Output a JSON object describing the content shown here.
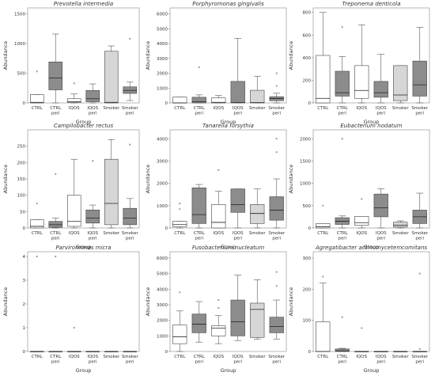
{
  "chart_data": [
    {
      "type": "box",
      "title": "Prevotella intermedia",
      "xlabel": "Group",
      "ylabel": "Abundance",
      "ylim": [
        0,
        1600
      ],
      "yticks": [
        0,
        500,
        1000,
        1500
      ],
      "categories": [
        "CTRL",
        "CTRL peri",
        "IQOS",
        "IQOS peri",
        "Smoker",
        "Smoker peri"
      ],
      "fills": [
        "#ffffff",
        "#8c8c8c",
        "#ffffff",
        "#8c8c8c",
        "#d6d6d6",
        "#8c8c8c"
      ],
      "boxes": [
        {
          "wl": 0,
          "q1": 0,
          "med": 10,
          "q3": 140,
          "wh": 140,
          "out": [
            530
          ]
        },
        {
          "wl": 0,
          "q1": 220,
          "med": 420,
          "q3": 690,
          "wh": 1160,
          "out": []
        },
        {
          "wl": 0,
          "q1": 5,
          "med": 20,
          "q3": 70,
          "wh": 150,
          "out": [
            330
          ]
        },
        {
          "wl": 0,
          "q1": 20,
          "med": 70,
          "q3": 210,
          "wh": 320,
          "out": []
        },
        {
          "wl": 0,
          "q1": 0,
          "med": 10,
          "q3": 870,
          "wh": 960,
          "out": []
        },
        {
          "wl": 40,
          "q1": 160,
          "med": 210,
          "q3": 270,
          "wh": 350,
          "out": [
            1080
          ]
        }
      ]
    },
    {
      "type": "box",
      "title": "Porphyromonas gingivalis",
      "xlabel": "Group",
      "ylabel": "Abundance",
      "ylim": [
        0,
        6400
      ],
      "yticks": [
        0,
        1000,
        2000,
        3000,
        4000,
        5000,
        6000
      ],
      "categories": [
        "CTRL",
        "CTRL peri",
        "IQOS",
        "IQOS peri",
        "Smoker",
        "Smoker peri"
      ],
      "fills": [
        "#ffffff",
        "#8c8c8c",
        "#ffffff",
        "#8c8c8c",
        "#d6d6d6",
        "#8c8c8c"
      ],
      "boxes": [
        {
          "wl": 0,
          "q1": 0,
          "med": 0,
          "q3": 390,
          "wh": 390,
          "out": []
        },
        {
          "wl": 0,
          "q1": 0,
          "med": 80,
          "q3": 380,
          "wh": 540,
          "out": [
            2400
          ]
        },
        {
          "wl": 0,
          "q1": 0,
          "med": 40,
          "q3": 340,
          "wh": 500,
          "out": []
        },
        {
          "wl": 0,
          "q1": 0,
          "med": 20,
          "q3": 1450,
          "wh": 4350,
          "out": []
        },
        {
          "wl": 0,
          "q1": 0,
          "med": 20,
          "q3": 850,
          "wh": 1800,
          "out": []
        },
        {
          "wl": 0,
          "q1": 150,
          "med": 290,
          "q3": 420,
          "wh": 650,
          "out": [
            1150,
            2000
          ]
        }
      ]
    },
    {
      "type": "box",
      "title": "Treponema denticola",
      "xlabel": "Group",
      "ylabel": "Abundance",
      "ylim": [
        0,
        840
      ],
      "yticks": [
        0,
        200,
        400,
        600,
        800
      ],
      "categories": [
        "CTRL",
        "CTRL peri",
        "IQOS",
        "IQOS peri",
        "Smoker",
        "Smoker peri"
      ],
      "fills": [
        "#ffffff",
        "#8c8c8c",
        "#ffffff",
        "#8c8c8c",
        "#d6d6d6",
        "#8c8c8c"
      ],
      "boxes": [
        {
          "wl": 0,
          "q1": 0,
          "med": 40,
          "q3": 420,
          "wh": 800,
          "out": []
        },
        {
          "wl": 0,
          "q1": 60,
          "med": 90,
          "q3": 280,
          "wh": 410,
          "out": [
            670
          ]
        },
        {
          "wl": 0,
          "q1": 40,
          "med": 110,
          "q3": 330,
          "wh": 690,
          "out": []
        },
        {
          "wl": 0,
          "q1": 50,
          "med": 90,
          "q3": 190,
          "wh": 430,
          "out": []
        },
        {
          "wl": 0,
          "q1": 20,
          "med": 70,
          "q3": 330,
          "wh": 330,
          "out": []
        },
        {
          "wl": 0,
          "q1": 60,
          "med": 160,
          "q3": 370,
          "wh": 670,
          "out": []
        }
      ]
    },
    {
      "type": "box",
      "title": "Campilobacter rectus",
      "xlabel": "Group",
      "ylabel": "Abundance",
      "ylim": [
        0,
        300
      ],
      "yticks": [
        0,
        50,
        100,
        150,
        200,
        250
      ],
      "categories": [
        "CTRL",
        "CTRL peri",
        "IQOS",
        "IQOS peri",
        "Smoker",
        "Smoker peri"
      ],
      "fills": [
        "#ffffff",
        "#8c8c8c",
        "#ffffff",
        "#8c8c8c",
        "#d6d6d6",
        "#8c8c8c"
      ],
      "boxes": [
        {
          "wl": 0,
          "q1": 0,
          "med": 5,
          "q3": 25,
          "wh": 25,
          "out": [
            75
          ]
        },
        {
          "wl": 0,
          "q1": 2,
          "med": 10,
          "q3": 20,
          "wh": 30,
          "out": [
            165
          ]
        },
        {
          "wl": 0,
          "q1": 5,
          "med": 20,
          "q3": 100,
          "wh": 210,
          "out": []
        },
        {
          "wl": 0,
          "q1": 15,
          "med": 30,
          "q3": 55,
          "wh": 70,
          "out": [
            205
          ]
        },
        {
          "wl": 0,
          "q1": 10,
          "med": 75,
          "q3": 210,
          "wh": 270,
          "out": []
        },
        {
          "wl": 0,
          "q1": 10,
          "med": 30,
          "q3": 60,
          "wh": 90,
          "out": [
            255
          ]
        }
      ]
    },
    {
      "type": "box",
      "title": "Tanarella forsythia",
      "xlabel": "Group",
      "ylabel": "Abundance",
      "ylim": [
        0,
        4400
      ],
      "yticks": [
        0,
        1000,
        2000,
        3000,
        4000
      ],
      "categories": [
        "CTRL",
        "CTRL peri",
        "IQOS",
        "IQOS peri",
        "Smoker",
        "Smoker peri"
      ],
      "fills": [
        "#ffffff",
        "#8c8c8c",
        "#ffffff",
        "#8c8c8c",
        "#d6d6d6",
        "#8c8c8c"
      ],
      "boxes": [
        {
          "wl": 0,
          "q1": 50,
          "med": 150,
          "q3": 300,
          "wh": 300,
          "out": [
            850,
            1100
          ]
        },
        {
          "wl": 0,
          "q1": 200,
          "med": 600,
          "q3": 1800,
          "wh": 1950,
          "out": []
        },
        {
          "wl": 0,
          "q1": 0,
          "med": 250,
          "q3": 1050,
          "wh": 1650,
          "out": [
            2600
          ]
        },
        {
          "wl": 0,
          "q1": 700,
          "med": 1050,
          "q3": 1750,
          "wh": 1750,
          "out": []
        },
        {
          "wl": 0,
          "q1": 200,
          "med": 650,
          "q3": 1050,
          "wh": 1750,
          "out": []
        },
        {
          "wl": 0,
          "q1": 350,
          "med": 800,
          "q3": 1400,
          "wh": 2200,
          "out": [
            3400,
            4000
          ]
        }
      ]
    },
    {
      "type": "box",
      "title": "Eubacterium nodatum",
      "xlabel": "Group",
      "ylabel": "Abundance",
      "ylim": [
        0,
        2200
      ],
      "yticks": [
        0,
        500,
        1000,
        1500,
        2000
      ],
      "categories": [
        "CTRL",
        "CTRL peri",
        "IQOS",
        "IQOS peri",
        "Smoker",
        "Smoker peri"
      ],
      "fills": [
        "#ffffff",
        "#8c8c8c",
        "#ffffff",
        "#8c8c8c",
        "#d6d6d6",
        "#8c8c8c"
      ],
      "boxes": [
        {
          "wl": 0,
          "q1": 0,
          "med": 30,
          "q3": 100,
          "wh": 100,
          "out": [
            500
          ]
        },
        {
          "wl": 0,
          "q1": 80,
          "med": 150,
          "q3": 230,
          "wh": 270,
          "out": [
            2000
          ]
        },
        {
          "wl": 0,
          "q1": 60,
          "med": 120,
          "q3": 260,
          "wh": 260,
          "out": [
            650
          ]
        },
        {
          "wl": 0,
          "q1": 250,
          "med": 450,
          "q3": 760,
          "wh": 880,
          "out": []
        },
        {
          "wl": 0,
          "q1": 20,
          "med": 60,
          "q3": 130,
          "wh": 160,
          "out": []
        },
        {
          "wl": 0,
          "q1": 100,
          "med": 250,
          "q3": 400,
          "wh": 780,
          "out": []
        }
      ]
    },
    {
      "type": "box",
      "title": "Parviromonas micra",
      "xlabel": "Group",
      "ylabel": "Abundance",
      "ylim": [
        0,
        4.2
      ],
      "yticks": [
        0,
        1,
        2,
        3,
        4
      ],
      "categories": [
        "CTRL",
        "CTRL peri",
        "IQOS",
        "IQOS peri",
        "Smoker",
        "Smoker peri"
      ],
      "fills": [
        "#ffffff",
        "#8c8c8c",
        "#ffffff",
        "#8c8c8c",
        "#d6d6d6",
        "#8c8c8c"
      ],
      "boxes": [
        {
          "wl": 0,
          "q1": 0,
          "med": 0,
          "q3": 0,
          "wh": 0,
          "out": [
            4
          ]
        },
        {
          "wl": 0,
          "q1": 0,
          "med": 0,
          "q3": 0,
          "wh": 0,
          "out": [
            4
          ]
        },
        {
          "wl": 0,
          "q1": 0,
          "med": 0,
          "q3": 0,
          "wh": 0,
          "out": [
            1
          ]
        },
        {
          "wl": 0,
          "q1": 0,
          "med": 0,
          "q3": 0,
          "wh": 0,
          "out": []
        },
        {
          "wl": 0,
          "q1": 0,
          "med": 0,
          "q3": 0,
          "wh": 0,
          "out": []
        },
        {
          "wl": 0,
          "q1": 0,
          "med": 0,
          "q3": 0,
          "wh": 0,
          "out": []
        }
      ]
    },
    {
      "type": "box",
      "title": "Fusobacterium nucleatum",
      "xlabel": "Group",
      "ylabel": "Abundance",
      "ylim": [
        0,
        6400
      ],
      "yticks": [
        0,
        1000,
        2000,
        3000,
        4000,
        5000,
        6000
      ],
      "categories": [
        "CTRL",
        "CTRL peri",
        "IQOS",
        "IQOS peri",
        "Smoker",
        "Smoker peri"
      ],
      "fills": [
        "#ffffff",
        "#8c8c8c",
        "#ffffff",
        "#8c8c8c",
        "#d6d6d6",
        "#8c8c8c"
      ],
      "boxes": [
        {
          "wl": 0,
          "q1": 500,
          "med": 950,
          "q3": 1700,
          "wh": 2600,
          "out": [
            3800
          ]
        },
        {
          "wl": 600,
          "q1": 1200,
          "med": 1750,
          "q3": 2400,
          "wh": 3200,
          "out": []
        },
        {
          "wl": 500,
          "q1": 1000,
          "med": 1500,
          "q3": 1650,
          "wh": 2300,
          "out": [
            2800,
            3300
          ]
        },
        {
          "wl": 700,
          "q1": 1000,
          "med": 1900,
          "q3": 3300,
          "wh": 4900,
          "out": []
        },
        {
          "wl": 800,
          "q1": 900,
          "med": 2700,
          "q3": 3100,
          "wh": 4600,
          "out": []
        },
        {
          "wl": 800,
          "q1": 1200,
          "med": 1600,
          "q3": 2200,
          "wh": 3300,
          "out": [
            4200,
            5100
          ]
        }
      ]
    },
    {
      "type": "box",
      "title": "Agregatibacter actinomycetemcomitans",
      "xlabel": "Group",
      "ylabel": "Abundance",
      "ylim": [
        0,
        320
      ],
      "yticks": [
        0,
        100,
        200,
        300
      ],
      "categories": [
        "CTRL",
        "CTRL peri",
        "IQOS",
        "IQOS peri",
        "Smoker",
        "Smoker peri"
      ],
      "fills": [
        "#ffffff",
        "#8c8c8c",
        "#ffffff",
        "#8c8c8c",
        "#d6d6d6",
        "#8c8c8c"
      ],
      "boxes": [
        {
          "wl": 0,
          "q1": 0,
          "med": 0,
          "q3": 95,
          "wh": 220,
          "out": [
            240
          ]
        },
        {
          "wl": 0,
          "q1": 0,
          "med": 2,
          "q3": 8,
          "wh": 10,
          "out": [
            110
          ]
        },
        {
          "wl": 0,
          "q1": 0,
          "med": 0,
          "q3": 0,
          "wh": 0,
          "out": [
            75
          ]
        },
        {
          "wl": 0,
          "q1": 0,
          "med": 0,
          "q3": 0,
          "wh": 0,
          "out": []
        },
        {
          "wl": 0,
          "q1": 0,
          "med": 0,
          "q3": 0,
          "wh": 0,
          "out": []
        },
        {
          "wl": 0,
          "q1": 0,
          "med": 0,
          "q3": 0,
          "wh": 0,
          "out": [
            250,
            8
          ]
        }
      ]
    }
  ]
}
